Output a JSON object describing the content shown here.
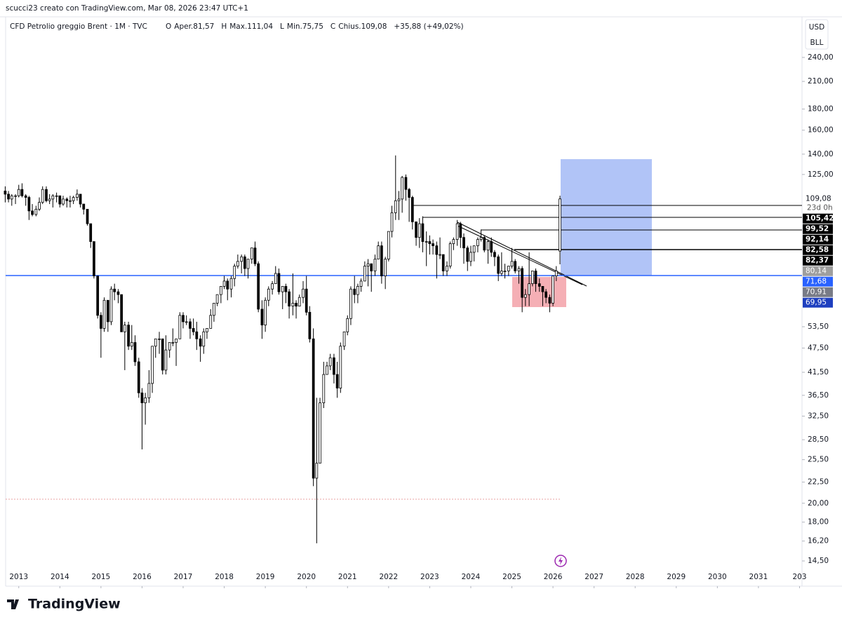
{
  "header": {
    "credit": "scucci23 creato con TradingView.com, Mar 08, 2026 23:47 UTC+1"
  },
  "chart_data": {
    "type": "candlestick",
    "title": "CFD Petrolio greggio Brent · 1M · TVC",
    "legend_items": [
      "O",
      "Aper.81,57",
      "H",
      "Max.111,04",
      "L",
      "Min.75,75",
      "C",
      "Chius.109,08",
      "+35,88 (+49,02%)"
    ],
    "currency": "USD",
    "unit": "BLL",
    "log_scale": true,
    "up_color": "#ffffff",
    "down_color": "#000000",
    "xlim": [
      2012.68,
      2032.06
    ],
    "ylim": [
      12.6,
      294
    ],
    "xticks": [
      2013,
      2014,
      2015,
      2016,
      2017,
      2018,
      2019,
      2020,
      2021,
      2022,
      2023,
      2024,
      2025,
      2026,
      2027,
      2028,
      2029,
      2030,
      2031,
      {
        "value": 2032,
        "label": "203"
      }
    ],
    "yticks": [
      {
        "value": 14.5,
        "label": "14,50"
      },
      {
        "value": 16.2,
        "label": "16,20"
      },
      {
        "value": 18,
        "label": "18,00"
      },
      {
        "value": 20,
        "label": "20,00"
      },
      {
        "value": 22.5,
        "label": "22,50"
      },
      {
        "value": 25.5,
        "label": "25,50"
      },
      {
        "value": 28.5,
        "label": "28,50"
      },
      {
        "value": 32.5,
        "label": "32,50"
      },
      {
        "value": 36.5,
        "label": "36,50"
      },
      {
        "value": 41.5,
        "label": "41,50"
      },
      {
        "value": 47.5,
        "label": "47,50"
      },
      {
        "value": 53.5,
        "label": "53,50"
      },
      {
        "value": 125,
        "label": "125,00"
      },
      {
        "value": 140,
        "label": "140,00"
      },
      {
        "value": 160,
        "label": "160,00"
      },
      {
        "value": 180,
        "label": "180,00"
      },
      {
        "value": 210,
        "label": "210,00"
      },
      {
        "value": 240,
        "label": "240,00"
      }
    ],
    "price_labels": [
      {
        "value": 109.08,
        "label": "109,08",
        "color": "#ffffff",
        "text_color": "#131722"
      },
      {
        "value": 105.42,
        "label": "105,42",
        "color": "#000000",
        "text_color": "#ffffff"
      },
      {
        "value": 99.52,
        "label": "99,52",
        "color": "#000000",
        "text_color": "#ffffff"
      },
      {
        "value": 92.14,
        "label": "92,14",
        "color": "#000000",
        "text_color": "#ffffff"
      },
      {
        "value": 82.58,
        "label": "82,58",
        "color": "#000000",
        "text_color": "#ffffff"
      },
      {
        "value": 82.37,
        "label": "82,37",
        "color": "#000000",
        "text_color": "#ffffff"
      },
      {
        "value": 80.14,
        "label": "80,14",
        "color": "#9e9e9e",
        "text_color": "#ffffff"
      },
      {
        "value": 71.68,
        "label": "71,68",
        "color": "#2962ff",
        "text_color": "#ffffff"
      },
      {
        "value": 70.91,
        "label": "70,91",
        "color": "#787b86",
        "text_color": "#ffffff"
      },
      {
        "value": 69.95,
        "label": "69,95",
        "color": "#1e3fbf",
        "text_color": "#ffffff"
      }
    ],
    "countdown": "23d 0h",
    "x": [
      2012.67,
      2012.75,
      2012.83,
      2012.92,
      2013.0,
      2013.08,
      2013.17,
      2013.25,
      2013.33,
      2013.42,
      2013.5,
      2013.58,
      2013.67,
      2013.75,
      2013.83,
      2013.92,
      2014.0,
      2014.08,
      2014.17,
      2014.25,
      2014.33,
      2014.42,
      2014.5,
      2014.58,
      2014.67,
      2014.75,
      2014.83,
      2014.92,
      2015.0,
      2015.08,
      2015.17,
      2015.25,
      2015.33,
      2015.42,
      2015.5,
      2015.58,
      2015.67,
      2015.75,
      2015.83,
      2015.92,
      2016.0,
      2016.08,
      2016.17,
      2016.25,
      2016.33,
      2016.42,
      2016.5,
      2016.58,
      2016.67,
      2016.75,
      2016.83,
      2016.92,
      2017.0,
      2017.08,
      2017.17,
      2017.25,
      2017.33,
      2017.42,
      2017.5,
      2017.58,
      2017.67,
      2017.75,
      2017.83,
      2017.92,
      2018.0,
      2018.08,
      2018.17,
      2018.25,
      2018.33,
      2018.42,
      2018.5,
      2018.58,
      2018.67,
      2018.75,
      2018.83,
      2018.92,
      2019.0,
      2019.08,
      2019.17,
      2019.25,
      2019.33,
      2019.42,
      2019.5,
      2019.58,
      2019.67,
      2019.75,
      2019.83,
      2019.92,
      2020.0,
      2020.08,
      2020.17,
      2020.25,
      2020.33,
      2020.42,
      2020.5,
      2020.58,
      2020.67,
      2020.75,
      2020.83,
      2020.92,
      2021.0,
      2021.08,
      2021.17,
      2021.25,
      2021.33,
      2021.42,
      2021.5,
      2021.58,
      2021.67,
      2021.75,
      2021.83,
      2021.92,
      2022.0,
      2022.08,
      2022.17,
      2022.25,
      2022.33,
      2022.42,
      2022.5,
      2022.58,
      2022.67,
      2022.75,
      2022.83,
      2022.92,
      2023.0,
      2023.08,
      2023.17,
      2023.25,
      2023.33,
      2023.42,
      2023.5,
      2023.58,
      2023.67,
      2023.75,
      2023.83,
      2023.92,
      2024.0,
      2024.08,
      2024.17,
      2024.25,
      2024.33,
      2024.42,
      2024.5,
      2024.58,
      2024.67,
      2024.75,
      2024.83,
      2024.92,
      2025.0,
      2025.08,
      2025.17,
      2025.25,
      2025.33,
      2025.42,
      2025.5,
      2025.58,
      2025.67,
      2025.75,
      2025.83,
      2025.92,
      2026.0,
      2026.08,
      2026.17
    ],
    "ohlc": [
      [
        114,
        117,
        107,
        112
      ],
      [
        112,
        114,
        107,
        109
      ],
      [
        109,
        112,
        105,
        111
      ],
      [
        111,
        112,
        106,
        111
      ],
      [
        111,
        118,
        110,
        115
      ],
      [
        115,
        119,
        110,
        111
      ],
      [
        111,
        112,
        105,
        110
      ],
      [
        110,
        111,
        97,
        102
      ],
      [
        102,
        106,
        99,
        100
      ],
      [
        100,
        105,
        99,
        103
      ],
      [
        103,
        110,
        102,
        107
      ],
      [
        107,
        117,
        106,
        115
      ],
      [
        115,
        117,
        107,
        108
      ],
      [
        108,
        112,
        106,
        109
      ],
      [
        109,
        112,
        104,
        111
      ],
      [
        111,
        113,
        107,
        111
      ],
      [
        111,
        111,
        104,
        106
      ],
      [
        106,
        111,
        105,
        109
      ],
      [
        109,
        110,
        104,
        108
      ],
      [
        108,
        111,
        104,
        108
      ],
      [
        108,
        111,
        106,
        110
      ],
      [
        110,
        115,
        108,
        112
      ],
      [
        112,
        112,
        104,
        106
      ],
      [
        106,
        106,
        100,
        103
      ],
      [
        103,
        103,
        94,
        95
      ],
      [
        95,
        95,
        83,
        86
      ],
      [
        86,
        86,
        70,
        71
      ],
      [
        71,
        71,
        56,
        57
      ],
      [
        57,
        58,
        45,
        53
      ],
      [
        53,
        63,
        52,
        62
      ],
      [
        62,
        62,
        52,
        55
      ],
      [
        55,
        67,
        54,
        66
      ],
      [
        66,
        68,
        62,
        65
      ],
      [
        65,
        66,
        61,
        64
      ],
      [
        64,
        64,
        52,
        52
      ],
      [
        52,
        55,
        42,
        54
      ],
      [
        54,
        55,
        47,
        48
      ],
      [
        48,
        54,
        47,
        49
      ],
      [
        49,
        51,
        43,
        44
      ],
      [
        44,
        45,
        36,
        37
      ],
      [
        37,
        38,
        27,
        35
      ],
      [
        35,
        37,
        31,
        36
      ],
      [
        36,
        42,
        35,
        39
      ],
      [
        39,
        48,
        37,
        48
      ],
      [
        48,
        50,
        45,
        50
      ],
      [
        50,
        52,
        46,
        50
      ],
      [
        50,
        50,
        41,
        42
      ],
      [
        42,
        51,
        41,
        47
      ],
      [
        47,
        49,
        45,
        49
      ],
      [
        49,
        53,
        48,
        49
      ],
      [
        49,
        50,
        43,
        50
      ],
      [
        50,
        58,
        50,
        57
      ],
      [
        57,
        58,
        53,
        55
      ],
      [
        55,
        57,
        54,
        55
      ],
      [
        55,
        56,
        50,
        53
      ],
      [
        53,
        56,
        51,
        52
      ],
      [
        52,
        55,
        47,
        50
      ],
      [
        50,
        51,
        44,
        48
      ],
      [
        48,
        53,
        46,
        52
      ],
      [
        52,
        53,
        50,
        53
      ],
      [
        53,
        59,
        53,
        57
      ],
      [
        57,
        61,
        55,
        61
      ],
      [
        61,
        64,
        60,
        64
      ],
      [
        64,
        67,
        61,
        67
      ],
      [
        67,
        71,
        66,
        69
      ],
      [
        69,
        70,
        62,
        66
      ],
      [
        66,
        71,
        63,
        70
      ],
      [
        70,
        76,
        67,
        75
      ],
      [
        75,
        80,
        74,
        77
      ],
      [
        77,
        80,
        72,
        79
      ],
      [
        79,
        80,
        71,
        74
      ],
      [
        74,
        78,
        70,
        78
      ],
      [
        78,
        83,
        76,
        83
      ],
      [
        83,
        86,
        75,
        76
      ],
      [
        76,
        77,
        58,
        59
      ],
      [
        59,
        62,
        50,
        54
      ],
      [
        54,
        63,
        52,
        62
      ],
      [
        62,
        67,
        60,
        66
      ],
      [
        66,
        69,
        64,
        68
      ],
      [
        68,
        75,
        68,
        72
      ],
      [
        72,
        74,
        64,
        65
      ],
      [
        65,
        67,
        59,
        67
      ],
      [
        67,
        68,
        61,
        65
      ],
      [
        65,
        66,
        56,
        60
      ],
      [
        60,
        72,
        57,
        61
      ],
      [
        61,
        62,
        56,
        60
      ],
      [
        60,
        64,
        60,
        63
      ],
      [
        63,
        69,
        61,
        66
      ],
      [
        66,
        71,
        57,
        58
      ],
      [
        58,
        60,
        49,
        50
      ],
      [
        50,
        53,
        22,
        23
      ],
      [
        23,
        36,
        16,
        25
      ],
      [
        25,
        36,
        25,
        35
      ],
      [
        35,
        44,
        34,
        41
      ],
      [
        41,
        44,
        41,
        43
      ],
      [
        43,
        46,
        42,
        45
      ],
      [
        45,
        46,
        39,
        41
      ],
      [
        41,
        44,
        36,
        38
      ],
      [
        38,
        49,
        37,
        48
      ],
      [
        48,
        52,
        47,
        52
      ],
      [
        52,
        57,
        51,
        56
      ],
      [
        56,
        67,
        54,
        66
      ],
      [
        66,
        71,
        61,
        64
      ],
      [
        64,
        68,
        61,
        67
      ],
      [
        67,
        70,
        65,
        69
      ],
      [
        69,
        77,
        69,
        75
      ],
      [
        75,
        78,
        67,
        76
      ],
      [
        76,
        76,
        65,
        73
      ],
      [
        73,
        80,
        71,
        78
      ],
      [
        78,
        86,
        78,
        84
      ],
      [
        84,
        86,
        68,
        71
      ],
      [
        71,
        79,
        66,
        78
      ],
      [
        78,
        91,
        77,
        91
      ],
      [
        91,
        105,
        88,
        101
      ],
      [
        101,
        139,
        97,
        108
      ],
      [
        108,
        114,
        97,
        109
      ],
      [
        109,
        124,
        101,
        123
      ],
      [
        123,
        125,
        108,
        115
      ],
      [
        115,
        116,
        96,
        110
      ],
      [
        110,
        111,
        92,
        96
      ],
      [
        96,
        96,
        84,
        88
      ],
      [
        88,
        98,
        83,
        95
      ],
      [
        95,
        99,
        81,
        86
      ],
      [
        86,
        91,
        75,
        86
      ],
      [
        86,
        89,
        80,
        85
      ],
      [
        85,
        87,
        80,
        84
      ],
      [
        84,
        86,
        70,
        80
      ],
      [
        80,
        88,
        78,
        80
      ],
      [
        80,
        80,
        71,
        73
      ],
      [
        73,
        77,
        71,
        75
      ],
      [
        75,
        86,
        74,
        85
      ],
      [
        85,
        88,
        82,
        87
      ],
      [
        87,
        97,
        84,
        95
      ],
      [
        95,
        96,
        83,
        88
      ],
      [
        88,
        90,
        76,
        83
      ],
      [
        83,
        84,
        73,
        77
      ],
      [
        77,
        84,
        75,
        81
      ],
      [
        81,
        84,
        77,
        84
      ],
      [
        84,
        88,
        81,
        87
      ],
      [
        87,
        92,
        86,
        88
      ],
      [
        88,
        89,
        81,
        82
      ],
      [
        82,
        87,
        76,
        86
      ],
      [
        86,
        88,
        79,
        81
      ],
      [
        81,
        82,
        75,
        79
      ],
      [
        79,
        80,
        69,
        72
      ],
      [
        72,
        81,
        71,
        73
      ],
      [
        73,
        76,
        70,
        73
      ],
      [
        73,
        75,
        71,
        75
      ],
      [
        75,
        83,
        74,
        77
      ],
      [
        77,
        78,
        72,
        73
      ],
      [
        73,
        75,
        68,
        74
      ],
      [
        74,
        75,
        58,
        63
      ],
      [
        63,
        66,
        60,
        64
      ],
      [
        64,
        81,
        60,
        68
      ],
      [
        68,
        73,
        67,
        73
      ],
      [
        73,
        74,
        65,
        68
      ],
      [
        68,
        70,
        65,
        67
      ],
      [
        67,
        67,
        60,
        65
      ],
      [
        65,
        66,
        61,
        63
      ],
      [
        63,
        64,
        58,
        61
      ],
      [
        61,
        71,
        60,
        71
      ],
      [
        71,
        75,
        69,
        73
      ],
      [
        81.57,
        111.04,
        75.75,
        109.08
      ]
    ]
  },
  "footer": {
    "brand": "TradingView"
  }
}
